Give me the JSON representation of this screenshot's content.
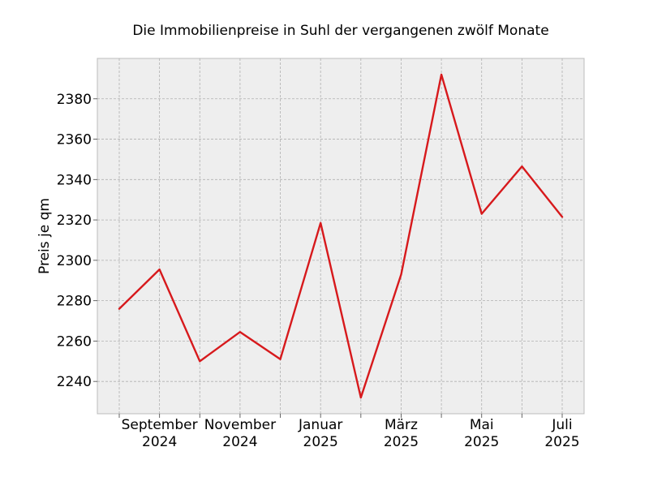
{
  "chart_data": {
    "type": "line",
    "title": "Die Immobilienpreise in Suhl der vergangenen zwölf Monate",
    "xlabel": "",
    "ylabel": "Preis je qm",
    "x": [
      "2024-08",
      "2024-09",
      "2024-10",
      "2024-11",
      "2024-12",
      "2025-01",
      "2025-02",
      "2025-03",
      "2025-04",
      "2025-05",
      "2025-06",
      "2025-07"
    ],
    "series": [
      {
        "color": "#d7191c",
        "values": [
          2276,
          2295.5,
          2250,
          2264.5,
          2251,
          2318.5,
          2232,
          2293,
          2392,
          2323,
          2346.5,
          2321.5
        ]
      }
    ],
    "ylim": [
      2224,
      2400
    ],
    "yticks": [
      "2240",
      "2260",
      "2280",
      "2300",
      "2320",
      "2340",
      "2360",
      "2380"
    ],
    "xtick_labels": [
      {
        "index": 1,
        "line1": "September",
        "line2": "2024"
      },
      {
        "index": 3,
        "line1": "November",
        "line2": "2024"
      },
      {
        "index": 5,
        "line1": "Januar",
        "line2": "2025"
      },
      {
        "index": 7,
        "line1": "März",
        "line2": "2025"
      },
      {
        "index": 9,
        "line1": "Mai",
        "line2": "2025"
      },
      {
        "index": 11,
        "line1": "Juli",
        "line2": "2025"
      }
    ],
    "grid": true,
    "background": "#eeeeee"
  }
}
